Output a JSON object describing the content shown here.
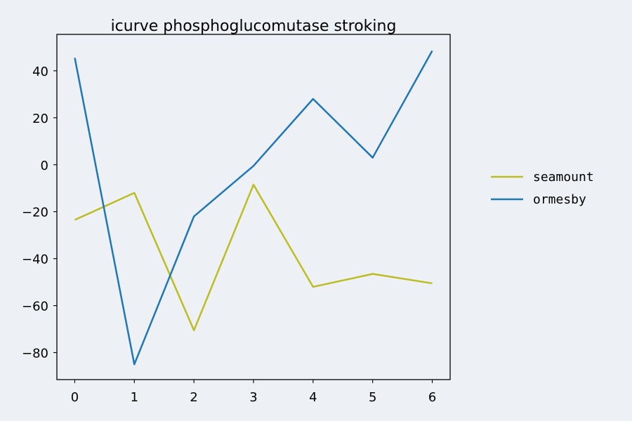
{
  "chart_data": {
    "type": "line",
    "title": "icurve phosphoglucomutase stroking",
    "xlabel": "",
    "ylabel": "",
    "x": [
      0,
      1,
      2,
      3,
      4,
      5,
      6
    ],
    "xticks": [
      "0",
      "1",
      "2",
      "3",
      "4",
      "5",
      "6"
    ],
    "yticks": [
      "40",
      "20",
      "0",
      "−20",
      "−40",
      "−60",
      "−80"
    ],
    "xlim": [
      -0.3,
      6.3
    ],
    "ylim": [
      -91.5,
      55.5
    ],
    "grid": false,
    "legend_position": "outside-right",
    "series": [
      {
        "name": "seamount",
        "color": "#bcbd22",
        "values": [
          -23.5,
          -12,
          -70.5,
          -8.5,
          -52,
          -46.5,
          -50.5
        ]
      },
      {
        "name": "ormesby",
        "color": "#1f77b4",
        "values": [
          45.5,
          -85,
          -22,
          -0.5,
          28,
          3,
          48.5
        ]
      }
    ]
  }
}
